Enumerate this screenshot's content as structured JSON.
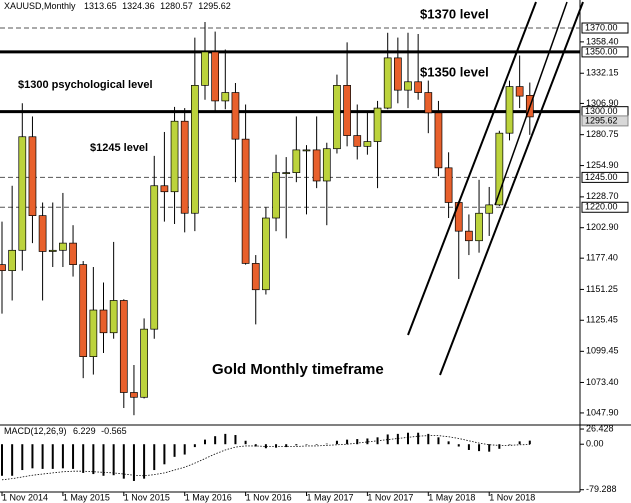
{
  "chart_data": {
    "type": "candlestick",
    "title": "XAUUSD,Monthly",
    "categories": [
      "1 Nov 2014",
      null,
      null,
      null,
      null,
      null,
      "1 May 2015",
      null,
      null,
      null,
      null,
      null,
      "1 Nov 2015",
      null,
      null,
      null,
      null,
      null,
      "1 May 2016",
      null,
      null,
      null,
      null,
      null,
      "1 Nov 2016",
      null,
      null,
      null,
      null,
      null,
      "1 May 2017",
      null,
      null,
      null,
      null,
      null,
      "1 Nov 2017",
      null,
      null,
      null,
      null,
      null,
      "1 May 2018",
      null,
      null,
      null,
      null,
      null,
      "1 Nov 2018",
      null,
      null,
      null,
      null
    ],
    "open": [
      1172,
      1167,
      1184,
      1279,
      1213,
      1183,
      1184,
      1190,
      1172,
      1095,
      1134,
      1115,
      1142,
      1065,
      1061,
      1118,
      1238,
      1233,
      1292,
      1215,
      1322,
      1350,
      1309,
      1316,
      1277,
      1173,
      1151,
      1211,
      1249,
      1249,
      1268,
      1268,
      1242,
      1269,
      1322,
      1280,
      1271,
      1275,
      1303,
      1345,
      1318,
      1325,
      1316,
      1299,
      1253,
      1224,
      1200,
      1192,
      1215,
      1222,
      1282,
      1321,
      1313.65
    ],
    "high": [
      1208,
      1238,
      1307,
      1296,
      1224,
      1224,
      1232,
      1205,
      1175,
      1170,
      1157,
      1191,
      1143,
      1088,
      1127,
      1263,
      1283,
      1304,
      1303,
      1362,
      1375,
      1367,
      1352,
      1324,
      1306,
      1180,
      1220,
      1264,
      1262,
      1296,
      1272,
      1296,
      1274,
      1331,
      1358,
      1306,
      1299,
      1309,
      1366,
      1362,
      1366,
      1365,
      1326,
      1309,
      1266,
      1225,
      1214,
      1243,
      1237,
      1284,
      1326,
      1347,
      1324.36
    ],
    "low": [
      1131,
      1142,
      1167,
      1190,
      1142,
      1170,
      1170,
      1162,
      1077,
      1080,
      1098,
      1110,
      1052,
      1046,
      1060,
      1110,
      1208,
      1206,
      1199,
      1200,
      1310,
      1300,
      1302,
      1241,
      1172,
      1122,
      1147,
      1200,
      1194,
      1241,
      1214,
      1236,
      1205,
      1265,
      1271,
      1260,
      1264,
      1236,
      1302,
      1307,
      1303,
      1310,
      1282,
      1246,
      1211,
      1160,
      1180,
      1182,
      1196,
      1221,
      1276,
      1303,
      1280.57
    ],
    "close": [
      1167,
      1184,
      1279,
      1213,
      1183,
      1184,
      1190,
      1172,
      1095,
      1134,
      1115,
      1142,
      1065,
      1061,
      1118,
      1238,
      1233,
      1292,
      1215,
      1322,
      1350,
      1309,
      1316,
      1277,
      1173,
      1151,
      1211,
      1249,
      1249,
      1268,
      1268,
      1242,
      1269,
      1322,
      1280,
      1271,
      1275,
      1303,
      1345,
      1318,
      1325,
      1316,
      1299,
      1253,
      1224,
      1200,
      1192,
      1215,
      1222,
      1282,
      1321,
      1313,
      1295.62
    ],
    "colors": {
      "up": "#bcd33c",
      "down": "#e8602c"
    },
    "ylim": [
      1037.8,
      1383.4
    ],
    "yticks": [
      {
        "value": 1358.4,
        "label": "1358.40"
      },
      1332.15,
      {
        "value": 1306.9,
        "label": "1306.90"
      },
      1280.75,
      {
        "value": 1254.9,
        "label": "1254.90"
      },
      {
        "value": 1228.7,
        "label": "1228.70"
      },
      {
        "value": 1202.9,
        "label": "1202.90"
      },
      {
        "value": 1177.4,
        "label": "1177.40"
      },
      1151.25,
      1125.45,
      1099.45,
      {
        "value": 1073.4,
        "label": "1073.40"
      },
      {
        "value": 1047.9,
        "label": "1047.90"
      }
    ],
    "levels": [
      {
        "value": 1370,
        "label": "1370.00",
        "style": "dashed"
      },
      {
        "value": 1350,
        "label": "1350.00",
        "style": "thick"
      },
      {
        "value": 1300,
        "label": "1300.00",
        "style": "thick"
      },
      {
        "value": 1245,
        "label": "1245.00",
        "style": "dashed"
      },
      {
        "value": 1220,
        "label": "1220.00",
        "style": "dashed"
      }
    ],
    "annotations": [
      "$1370 level",
      "$1350 level",
      "$1300 psychological level",
      "$1245 level",
      "Gold Monthly timeframe"
    ],
    "macd": {
      "name": "MACD(12,26,9)",
      "values": [
        -55,
        -55,
        -45,
        -42,
        -43,
        -43,
        -42,
        -43,
        -50,
        -52,
        -55,
        -54,
        -60,
        -64,
        -60,
        -45,
        -35,
        -22,
        -18,
        -5,
        8,
        14,
        18,
        16,
        6,
        -4,
        -7,
        -6,
        -5,
        -2,
        0,
        -1,
        1,
        6,
        8,
        9,
        10,
        12,
        17,
        18,
        20,
        20,
        18,
        12,
        5,
        -4,
        -10,
        -12,
        -13,
        -8,
        0,
        5,
        6.229
      ],
      "signal": [
        -62,
        -60,
        -57,
        -54,
        -52,
        -50,
        -48,
        -47,
        -47,
        -48,
        -49,
        -50,
        -52,
        -54,
        -55,
        -53,
        -50,
        -45,
        -40,
        -33,
        -25,
        -17,
        -10,
        -5,
        -3,
        -3,
        -4,
        -4,
        -4,
        -4,
        -3,
        -3,
        -2,
        -1,
        0,
        2,
        4,
        6,
        8,
        10,
        12,
        14,
        15,
        15,
        13,
        10,
        6,
        2,
        -1,
        -2,
        -2,
        -1,
        -0.565
      ],
      "ylim": [
        -85,
        30
      ],
      "yticks": [
        26.428,
        {
          "value": 0,
          "label": "0.00"
        },
        -79.288
      ]
    }
  }
}
